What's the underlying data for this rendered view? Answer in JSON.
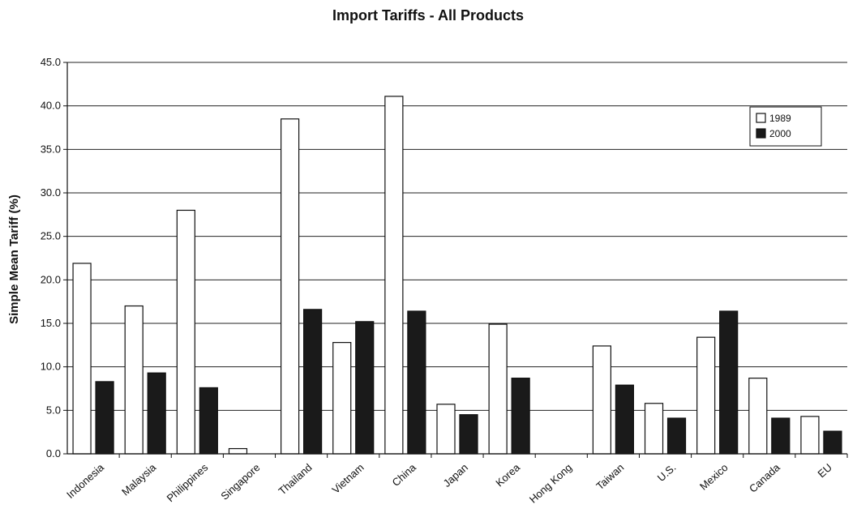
{
  "chart_data": {
    "type": "bar",
    "title": "Import Tariffs - All Products",
    "ylabel": "Simple Mean Tariff (%)",
    "xlabel": "",
    "ylim": [
      0,
      45
    ],
    "yticks": [
      "0.0",
      "5.0",
      "10.0",
      "15.0",
      "20.0",
      "25.0",
      "30.0",
      "35.0",
      "40.0",
      "45.0"
    ],
    "grid": true,
    "legend_position": "top-right",
    "categories": [
      "Indonesia",
      "Malaysia",
      "Philippines",
      "Singapore",
      "Thailand",
      "Vietnam",
      "China",
      "Japan",
      "Korea",
      "Hong Kong",
      "Taiwan",
      "U.S.",
      "Mexico",
      "Canada",
      "EU"
    ],
    "series": [
      {
        "name": "1989",
        "color": "#ffffff",
        "values": [
          21.9,
          17.0,
          28.0,
          0.6,
          38.5,
          12.8,
          41.1,
          5.7,
          14.9,
          0.0,
          12.4,
          5.8,
          13.4,
          8.7,
          4.3
        ]
      },
      {
        "name": "2000",
        "color": "#1a1a1a",
        "values": [
          8.3,
          9.3,
          7.6,
          0.0,
          16.6,
          15.2,
          16.4,
          4.5,
          8.7,
          0.0,
          7.9,
          4.1,
          16.4,
          4.1,
          2.6
        ]
      }
    ]
  }
}
